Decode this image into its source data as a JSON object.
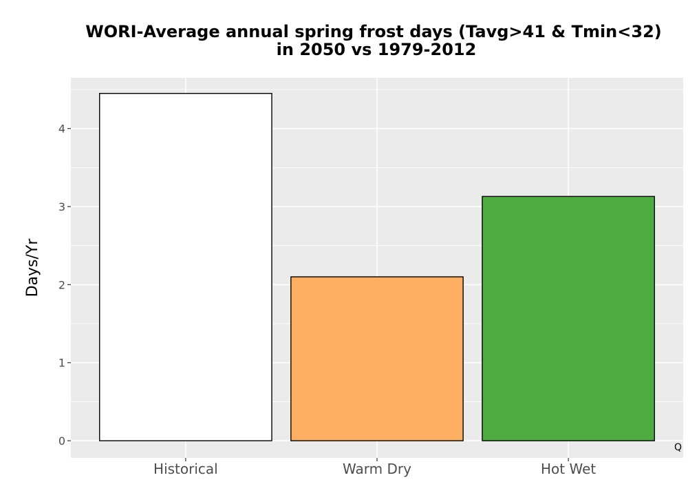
{
  "chart_data": {
    "type": "bar",
    "title": "WORI-Average annual spring frost days (Tavg>41 & Tmin<32)",
    "subtitle": "in 2050 vs 1979-2012",
    "xlabel": "",
    "ylabel": "Days/Yr",
    "categories": [
      "Historical",
      "Warm Dry",
      "Hot Wet"
    ],
    "values": [
      4.45,
      2.1,
      3.13
    ],
    "colors": [
      "#ffffff",
      "#fdae61",
      "#4dab3f"
    ],
    "ylim": [
      -0.22,
      4.65
    ],
    "yticks": [
      0,
      1,
      2,
      3,
      4
    ],
    "grid": true,
    "panel_background": "#ebebeb",
    "corner_label": "Q"
  }
}
